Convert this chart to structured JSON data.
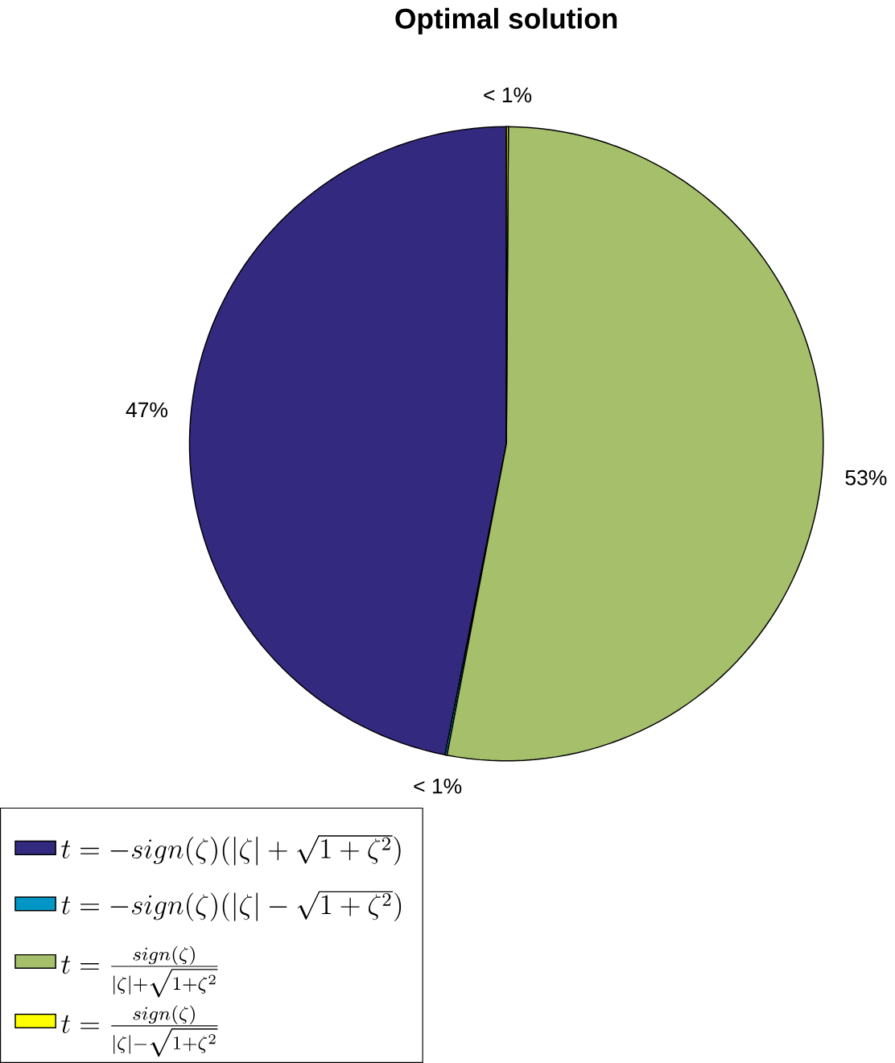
{
  "chart_data": {
    "type": "pie",
    "title": "Optimal solution",
    "categories": [
      "t=-sign(\\zeta)(|\\zeta|+\\sqrt{1+\\zeta^2})",
      "t=-sign(\\zeta)(|\\zeta|-\\sqrt{1+\\zeta^2})",
      "t=\\frac{sign(\\zeta)}{|\\zeta|+\\sqrt{1+\\zeta^2}}",
      "t=\\frac{sign(\\zeta)}{|\\zeta|-\\sqrt{1+\\zeta^2}}"
    ],
    "values": [
      46.9,
      0.1,
      52.9,
      0.1
    ],
    "colors": [
      "#332a7f",
      "#0097c7",
      "#a5bf6b",
      "#ffff00"
    ],
    "value_labels": [
      "47%",
      "< 1%",
      "53%",
      "< 1%"
    ],
    "legend": "bottom left"
  }
}
